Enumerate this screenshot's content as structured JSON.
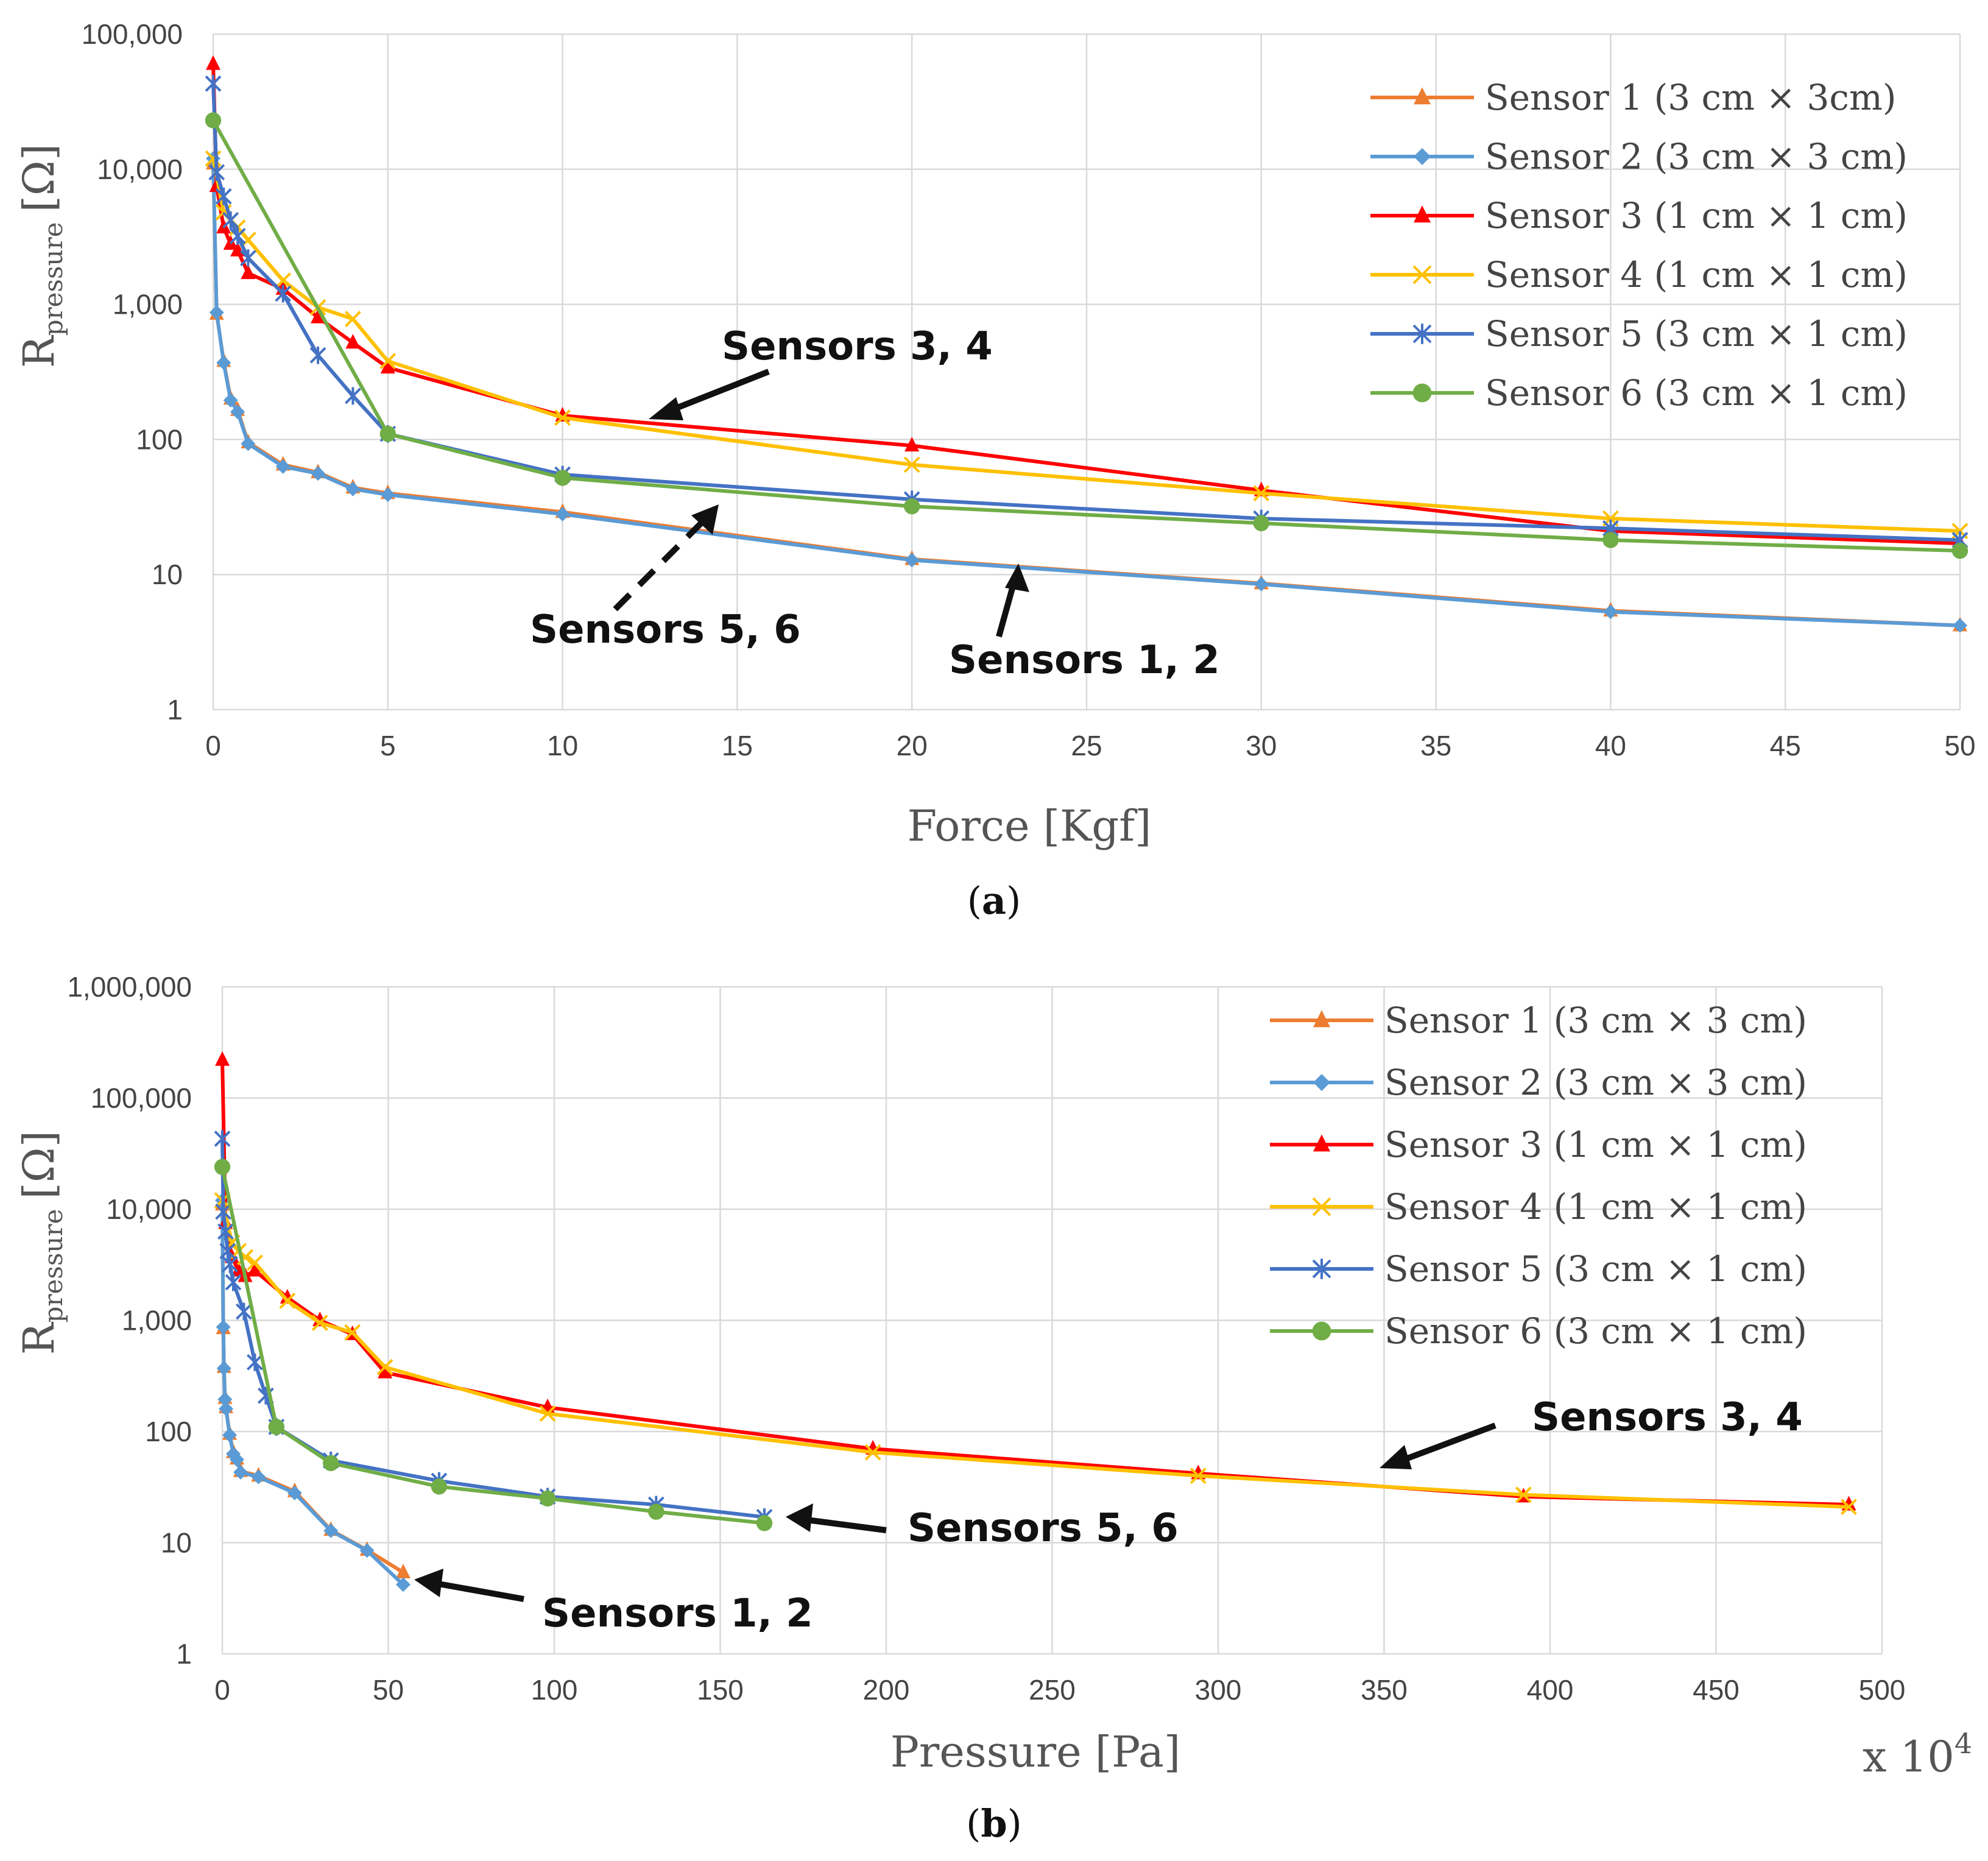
{
  "chart_data": [
    {
      "panel": "a",
      "type": "line",
      "caption_letter": "a",
      "xlabel": "Force [Kgf]",
      "ylabel_main": "R",
      "ylabel_sub": "pressure",
      "ylabel_unit": "[Ω]",
      "x_ticks": [
        "0",
        "5",
        "10",
        "15",
        "20",
        "25",
        "30",
        "35",
        "40",
        "45",
        "50"
      ],
      "xlim": [
        0,
        50
      ],
      "y_scale": "log",
      "ylim": [
        1,
        100000
      ],
      "y_ticks": [
        {
          "v": 1,
          "label": "1"
        },
        {
          "v": 10,
          "label": "10"
        },
        {
          "v": 100,
          "label": "100"
        },
        {
          "v": 1000,
          "label": "1,000"
        },
        {
          "v": 10000,
          "label": "10,000"
        },
        {
          "v": 100000,
          "label": "100,000"
        }
      ],
      "grid": true,
      "legend_position": "top-right",
      "series": [
        {
          "name": "Sensor 1 (3 cm × 3cm)",
          "color": "#ED7D31",
          "marker": "triangle",
          "x": [
            0,
            0.1,
            0.3,
            0.5,
            0.7,
            1,
            2,
            3,
            4,
            5,
            10,
            20,
            30,
            40,
            50
          ],
          "y": [
            11000,
            850,
            380,
            200,
            165,
            95,
            65,
            57,
            44,
            40,
            29,
            13,
            8.6,
            5.4,
            4.2
          ]
        },
        {
          "name": "Sensor 2 (3 cm × 3 cm)",
          "color": "#5B9BD5",
          "marker": "diamond",
          "x": [
            0,
            0.1,
            0.3,
            0.5,
            0.7,
            1,
            2,
            3,
            4,
            5,
            10,
            20,
            30,
            40,
            50
          ],
          "y": [
            12000,
            870,
            370,
            195,
            160,
            93,
            63,
            56,
            43,
            39,
            28,
            12.8,
            8.5,
            5.3,
            4.2
          ]
        },
        {
          "name": "Sensor 3 (1 cm × 1 cm)",
          "color": "#FF0000",
          "marker": "triangle",
          "x": [
            0,
            0.1,
            0.3,
            0.5,
            0.7,
            1,
            2,
            3,
            4,
            5,
            10,
            20,
            30,
            40,
            50
          ],
          "y": [
            60000,
            7500,
            3700,
            2800,
            2500,
            1700,
            1300,
            800,
            520,
            340,
            150,
            90,
            42,
            21,
            17
          ]
        },
        {
          "name": "Sensor 4 (1 cm × 1 cm)",
          "color": "#FFC000",
          "marker": "x",
          "x": [
            0,
            0.3,
            0.5,
            0.7,
            1,
            2,
            3,
            4,
            5,
            10,
            20,
            30,
            40,
            50
          ],
          "y": [
            12000,
            4800,
            4200,
            3700,
            3000,
            1500,
            950,
            780,
            380,
            145,
            65,
            40,
            26,
            21
          ]
        },
        {
          "name": "Sensor 5 (3 cm × 1 cm)",
          "color": "#4472C4",
          "marker": "asterisk",
          "x": [
            0,
            0.1,
            0.3,
            0.5,
            0.7,
            1,
            2,
            3,
            4,
            5,
            10,
            20,
            30,
            40,
            50
          ],
          "y": [
            43000,
            9500,
            6300,
            4200,
            3200,
            2200,
            1200,
            420,
            210,
            110,
            55,
            36,
            26,
            22,
            18
          ]
        },
        {
          "name": "Sensor 6 (3 cm × 1 cm)",
          "color": "#70AD47",
          "marker": "circle",
          "x": [
            0,
            5,
            10,
            20,
            30,
            40,
            50
          ],
          "y": [
            23000,
            110,
            52,
            32,
            24,
            18,
            15
          ]
        }
      ],
      "annotations": [
        {
          "text": "Sensors 3, 4"
        },
        {
          "text": "Sensors 5, 6"
        },
        {
          "text": "Sensors 1, 2"
        }
      ]
    },
    {
      "panel": "b",
      "type": "line",
      "caption_letter": "b",
      "xlabel": "Pressure [Pa]",
      "x_multiplier_base": "x 10",
      "x_multiplier_exp": "4",
      "ylabel_main": "R",
      "ylabel_sub": "pressure",
      "ylabel_unit": "[Ω]",
      "x_ticks": [
        "0",
        "50",
        "100",
        "150",
        "200",
        "250",
        "300",
        "350",
        "400",
        "450",
        "500"
      ],
      "xlim": [
        0,
        500
      ],
      "y_scale": "log",
      "ylim": [
        1,
        1000000
      ],
      "y_ticks": [
        {
          "v": 1,
          "label": "1"
        },
        {
          "v": 10,
          "label": "10"
        },
        {
          "v": 100,
          "label": "100"
        },
        {
          "v": 1000,
          "label": "1,000"
        },
        {
          "v": 10000,
          "label": "10,000"
        },
        {
          "v": 100000,
          "label": "100,000"
        },
        {
          "v": 1000000,
          "label": "1,000,000"
        }
      ],
      "grid": true,
      "legend_position": "top-right",
      "series": [
        {
          "name": "Sensor 1 (3 cm × 3 cm)",
          "color": "#ED7D31",
          "marker": "triangle",
          "x": [
            0,
            0.3,
            0.5,
            0.8,
            1.1,
            2.2,
            3.3,
            4.4,
            5.5,
            10.9,
            21.8,
            32.7,
            43.6,
            54.5
          ],
          "y": [
            11000,
            850,
            380,
            200,
            165,
            95,
            65,
            57,
            44,
            40,
            29,
            13,
            8.6,
            5.4
          ]
        },
        {
          "name": "Sensor 2 (3 cm × 3 cm)",
          "color": "#5B9BD5",
          "marker": "diamond",
          "x": [
            0,
            0.3,
            0.5,
            0.8,
            1.1,
            2.2,
            3.3,
            4.4,
            5.5,
            10.9,
            21.8,
            32.7,
            43.6,
            54.5
          ],
          "y": [
            12000,
            870,
            370,
            195,
            160,
            93,
            63,
            56,
            43,
            39,
            28,
            12.8,
            8.5,
            4.2
          ]
        },
        {
          "name": "Sensor 3 (1 cm × 1 cm)",
          "color": "#FF0000",
          "marker": "triangle",
          "x": [
            0,
            0.98,
            2.9,
            4.9,
            6.9,
            9.8,
            19.6,
            29.4,
            39.2,
            49,
            98,
            196,
            294,
            392,
            490
          ],
          "y": [
            220000,
            7500,
            3700,
            2800,
            2500,
            2800,
            1600,
            1000,
            750,
            340,
            165,
            70,
            42,
            26,
            22
          ]
        },
        {
          "name": "Sensor 4 (1 cm × 1 cm)",
          "color": "#FFC000",
          "marker": "x",
          "x": [
            0,
            2.9,
            4.9,
            6.9,
            9.8,
            19.6,
            29.4,
            39.2,
            49,
            98,
            196,
            294,
            392,
            490
          ],
          "y": [
            12000,
            5000,
            4200,
            3700,
            3300,
            1500,
            950,
            780,
            380,
            145,
            65,
            40,
            27,
            21
          ]
        },
        {
          "name": "Sensor 5 (3 cm × 1 cm)",
          "color": "#4472C4",
          "marker": "asterisk",
          "x": [
            0,
            0.3,
            1,
            1.6,
            2.3,
            3.3,
            6.5,
            9.8,
            13.1,
            16.3,
            32.7,
            65.3,
            98,
            130.7,
            163.3
          ],
          "y": [
            43000,
            9500,
            6300,
            4200,
            3200,
            2200,
            1200,
            420,
            210,
            110,
            55,
            36,
            26,
            22,
            17
          ]
        },
        {
          "name": "Sensor 6 (3 cm × 1 cm)",
          "color": "#70AD47",
          "marker": "circle",
          "x": [
            0,
            16.3,
            32.7,
            65.3,
            98,
            130.7,
            163.3
          ],
          "y": [
            24000,
            110,
            52,
            32,
            25,
            19,
            15
          ]
        }
      ],
      "annotations": [
        {
          "text": "Sensors 3, 4"
        },
        {
          "text": "Sensors 5, 6"
        },
        {
          "text": "Sensors 1, 2"
        }
      ]
    }
  ]
}
